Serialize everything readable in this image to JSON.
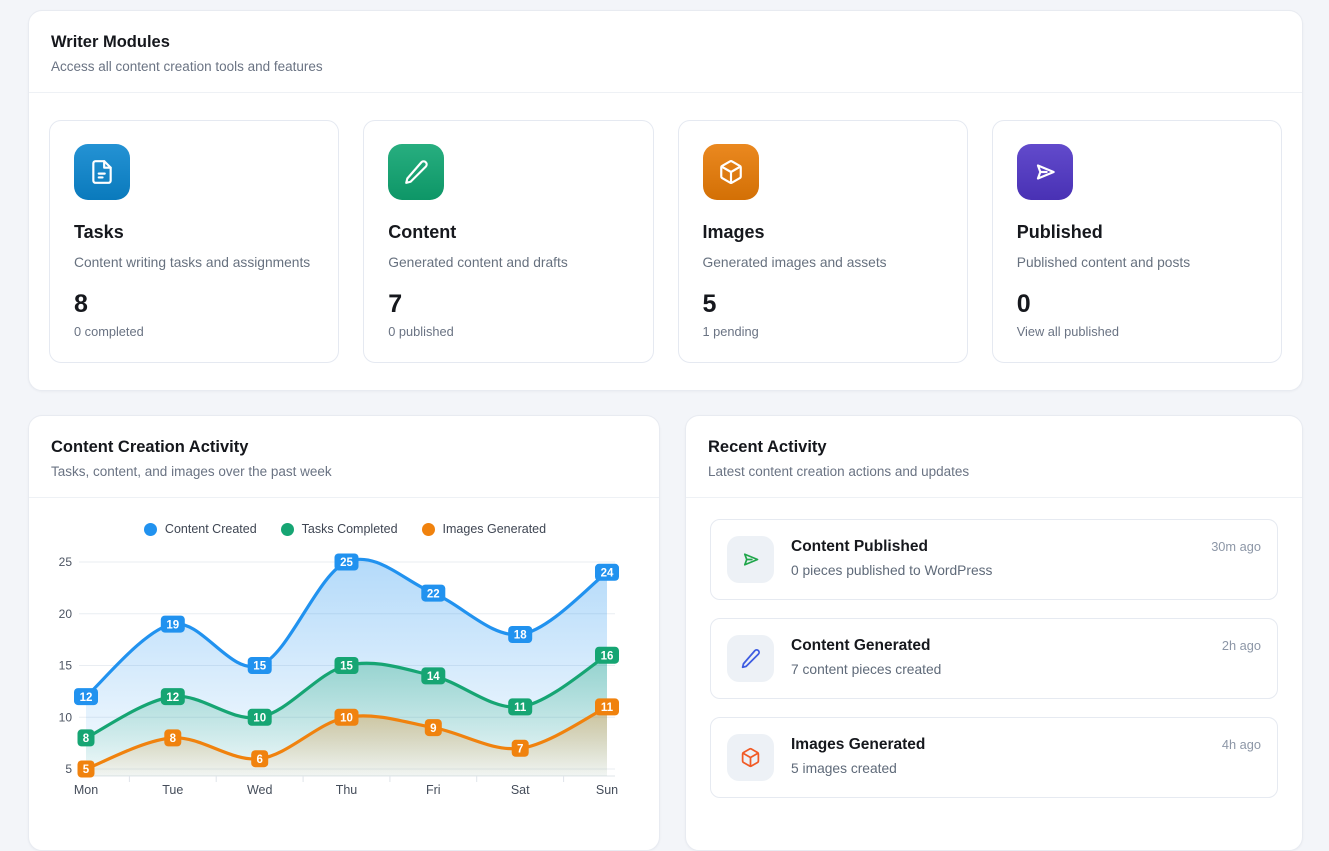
{
  "writer_modules": {
    "title": "Writer Modules",
    "subtitle": "Access all content creation tools and features",
    "cards": [
      {
        "title": "Tasks",
        "description": "Content writing tasks and assignments",
        "count": "8",
        "sub_label": "0 completed",
        "color": "#0b86cf",
        "icon": "file-text-icon"
      },
      {
        "title": "Content",
        "description": "Generated content and drafts",
        "count": "7",
        "sub_label": "0 published",
        "color": "#0fa571",
        "icon": "pencil-icon"
      },
      {
        "title": "Images",
        "description": "Generated images and assets",
        "count": "5",
        "sub_label": "1 pending",
        "color": "#e87b06",
        "icon": "cube-icon"
      },
      {
        "title": "Published",
        "description": "Published content and posts",
        "count": "0",
        "sub_label": "View all published",
        "color": "#5036c6",
        "icon": "send-icon"
      }
    ]
  },
  "activity_chart_panel": {
    "title": "Content Creation Activity",
    "subtitle": "Tasks, content, and images over the past week"
  },
  "chart_data": {
    "type": "line",
    "x": [
      "Mon",
      "Tue",
      "Wed",
      "Thu",
      "Fri",
      "Sat",
      "Sun"
    ],
    "series": [
      {
        "name": "Content Created",
        "color": "#2192ef",
        "values": [
          12,
          19,
          15,
          25,
          22,
          18,
          24
        ]
      },
      {
        "name": "Tasks Completed",
        "color": "#16a573",
        "values": [
          8,
          12,
          10,
          15,
          14,
          11,
          16
        ]
      },
      {
        "name": "Images Generated",
        "color": "#f0820e",
        "values": [
          5,
          8,
          6,
          10,
          9,
          7,
          11
        ]
      }
    ],
    "yticks": [
      5,
      10,
      15,
      20,
      25
    ],
    "ylim": [
      4.3,
      26.3
    ],
    "grid": "horizontal",
    "legend_position": "top",
    "smooth": true,
    "area_fill": true,
    "point_labels": true
  },
  "recent_activity": {
    "title": "Recent Activity",
    "subtitle": "Latest content creation actions and updates",
    "items": [
      {
        "title": "Content Published",
        "description": "0 pieces published to WordPress",
        "time": "30m ago",
        "color": "#20a64b",
        "icon": "send-icon"
      },
      {
        "title": "Content Generated",
        "description": "7 content pieces created",
        "time": "2h ago",
        "color": "#3e5ce1",
        "icon": "pencil-icon"
      },
      {
        "title": "Images Generated",
        "description": "5 images created",
        "time": "4h ago",
        "color": "#f15a25",
        "icon": "cube-icon"
      }
    ]
  }
}
